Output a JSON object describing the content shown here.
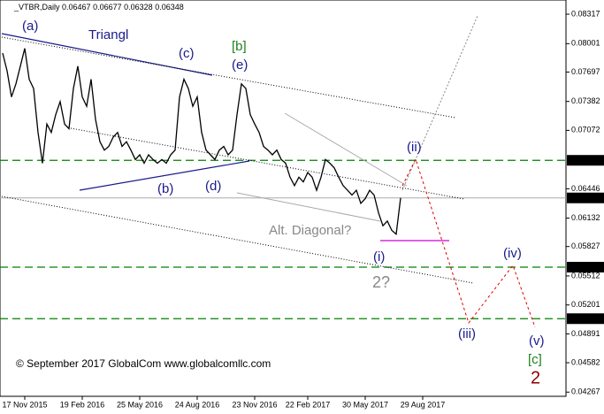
{
  "chart_data": {
    "type": "line",
    "symbol": "_VTBR,Daily",
    "ohlc": [
      0.06467,
      0.06677,
      0.06328,
      0.06348
    ],
    "values": [
      0.079,
      0.0771,
      0.0743,
      0.0757,
      0.0776,
      0.0795,
      0.0762,
      0.0752,
      0.0705,
      0.0672,
      0.0714,
      0.0705,
      0.0724,
      0.0738,
      0.0714,
      0.0709,
      0.0752,
      0.0776,
      0.0743,
      0.0733,
      0.0762,
      0.0719,
      0.0695,
      0.0686,
      0.069,
      0.07,
      0.0705,
      0.069,
      0.0695,
      0.0686,
      0.0676,
      0.0681,
      0.0672,
      0.0681,
      0.0676,
      0.0672,
      0.0676,
      0.0672,
      0.0681,
      0.0686,
      0.0743,
      0.0762,
      0.0752,
      0.0733,
      0.0743,
      0.0705,
      0.0686,
      0.0681,
      0.0676,
      0.0686,
      0.069,
      0.0681,
      0.0686,
      0.0724,
      0.0757,
      0.0752,
      0.0724,
      0.0714,
      0.0705,
      0.069,
      0.0686,
      0.0681,
      0.0686,
      0.0676,
      0.0672,
      0.0657,
      0.0648,
      0.0657,
      0.0652,
      0.0662,
      0.0657,
      0.0643,
      0.0657,
      0.0676,
      0.0672,
      0.0667,
      0.0657,
      0.0648,
      0.0643,
      0.0638,
      0.0643,
      0.0629,
      0.0634,
      0.0643,
      0.0638,
      0.0619,
      0.0605,
      0.061,
      0.06,
      0.0596,
      0.06348
    ],
    "color": "#000000",
    "xlim": [
      -0.6,
      127.4
    ],
    "xticks": [
      {
        "value": 5,
        "label": "17 Nov 2015"
      },
      {
        "value": 18,
        "label": "19 Feb 2016"
      },
      {
        "value": 31,
        "label": "25 May 2016"
      },
      {
        "value": 44,
        "label": "24 Aug 2016"
      },
      {
        "value": 57,
        "label": "23 Nov 2016"
      },
      {
        "value": 69,
        "label": "22 Feb 2017"
      },
      {
        "value": 82,
        "label": "30 May 2017"
      },
      {
        "value": 95,
        "label": "29 Aug 2017"
      }
    ],
    "ylim": [
      0.04222,
      0.08469
    ],
    "yticks": [
      0.08317,
      0.08001,
      0.07697,
      0.07382,
      0.07072,
      0.06446,
      0.06132,
      0.05827,
      0.05512,
      0.05201,
      0.04891,
      0.04582,
      0.04267
    ],
    "levels": [
      0.06751,
      0.05606,
      0.05054
    ],
    "level_color": "#008000",
    "annotations": [
      "(a)",
      "Triangl",
      "(c)",
      "[b]",
      "(e)",
      "(b)",
      "(d)",
      "Alt. Diagonal?",
      "(ii)",
      "(i)",
      "2?",
      "(iv)",
      "(iii)",
      "(v)",
      "[c]",
      "2"
    ],
    "copyright": "© September 2017 GlobalCom www.globalcomllc.com"
  }
}
